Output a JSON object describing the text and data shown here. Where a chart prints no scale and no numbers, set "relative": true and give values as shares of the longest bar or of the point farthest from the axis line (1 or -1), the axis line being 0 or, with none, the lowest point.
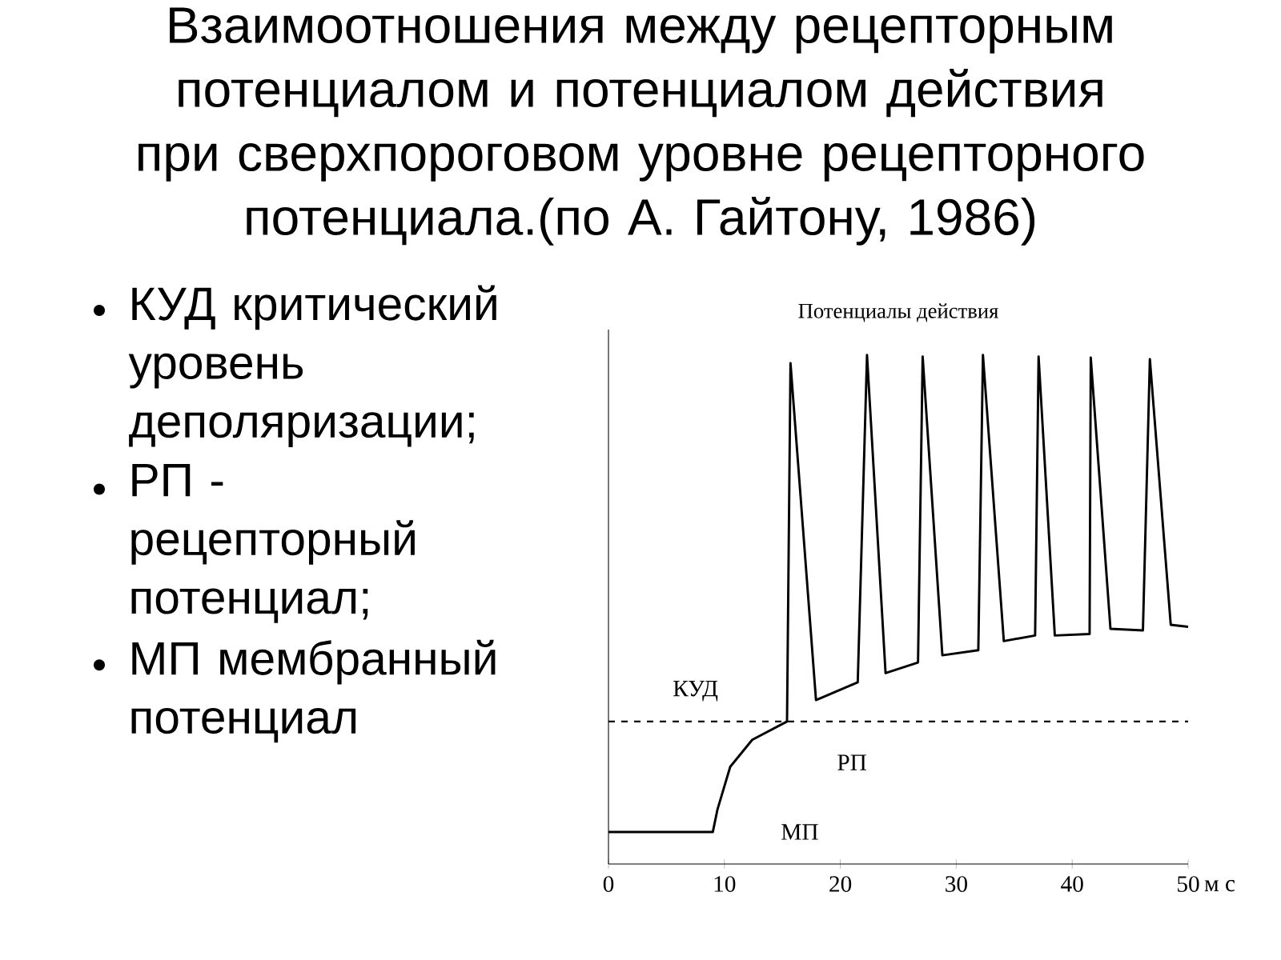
{
  "chart_data": {
    "type": "line",
    "title": "Взаимоотношения между рецепторным потенциалом и потенциалом действия при сверхпороговом уровне рецепторного потенциала.(по А. Гайтону, 1986)",
    "subtitle": "Потенциалы действия",
    "xlabel": "м с",
    "x": [
      0,
      9,
      9.4,
      10.5,
      12.4,
      15.4,
      15.7,
      17.9,
      21.5,
      22.3,
      23.9,
      26.7,
      27.1,
      28.8,
      31.9,
      32.3,
      34.1,
      36.8,
      37.1,
      38.5,
      41.5,
      41.6,
      43.3,
      46.1,
      46.7,
      48.5,
      50
    ],
    "values": [
      0.063,
      0.063,
      0.107,
      0.191,
      0.244,
      0.28,
      0.984,
      0.322,
      0.357,
      1.0,
      0.375,
      0.396,
      0.997,
      0.41,
      0.42,
      1.0,
      0.438,
      0.449,
      0.997,
      0.449,
      0.452,
      0.995,
      0.462,
      0.459,
      0.992,
      0.47,
      0.466
    ],
    "color": "#000000",
    "line_style": "solid",
    "relative": true,
    "xlim": [
      0,
      50
    ],
    "xticks": [
      0,
      10,
      20,
      30,
      40,
      50
    ],
    "ref_lines": [
      {
        "axis": "y",
        "value": 0.28,
        "label": "КУД",
        "line_style": "dashed",
        "color": "#000000"
      }
    ],
    "annotations": [
      "КУД критический уровень деполяризации;",
      "РП - рецепторный потенциал;",
      "МП мембранный потенциал",
      "РП",
      "МП"
    ]
  }
}
